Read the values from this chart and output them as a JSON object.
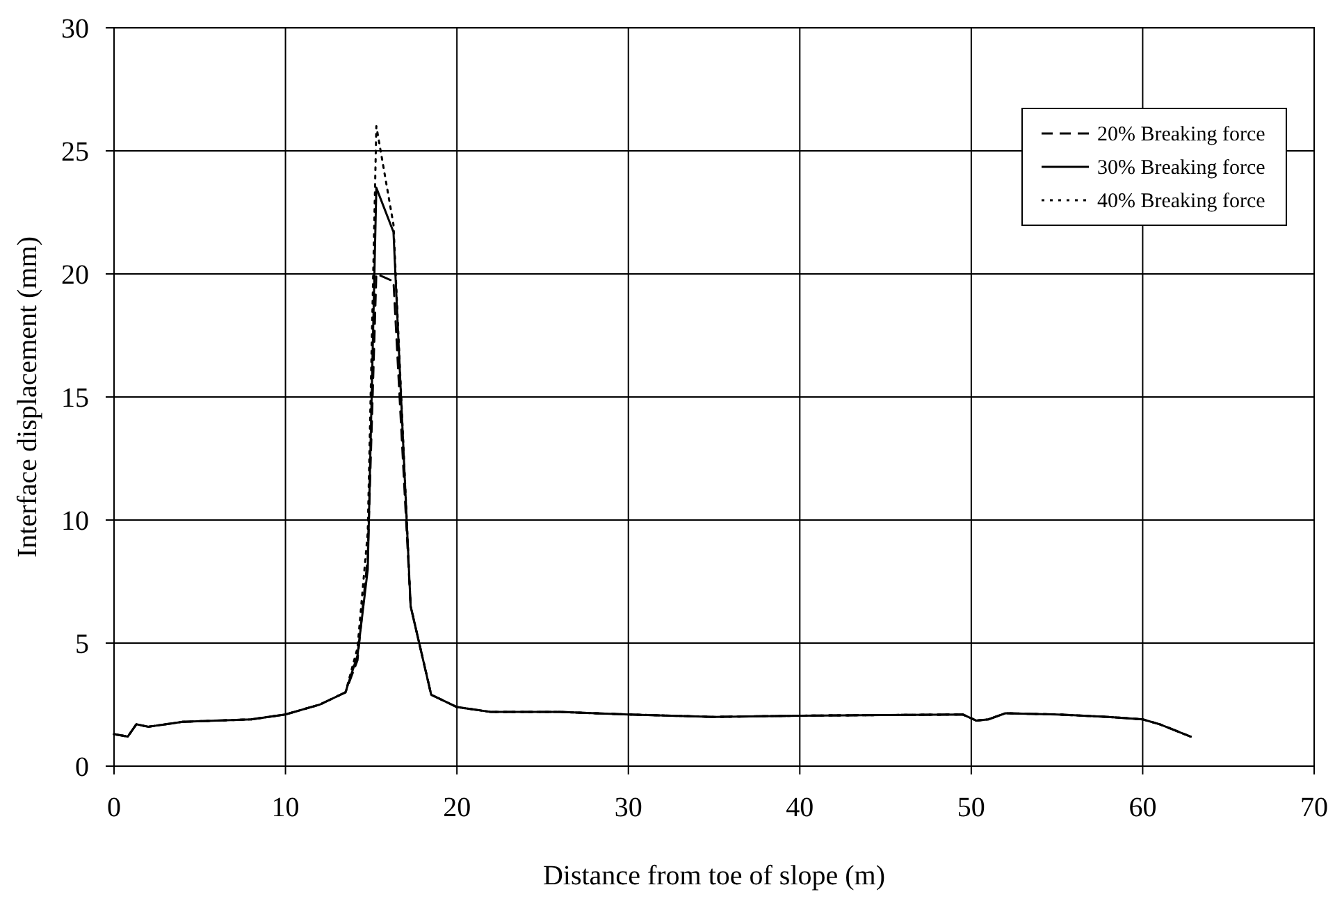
{
  "chart_data": {
    "type": "line",
    "xlabel": "Distance from toe of slope (m)",
    "ylabel": "Interface displacement (mm)",
    "x": [
      0,
      0.8,
      1.3,
      2,
      4,
      8,
      10,
      12,
      13.5,
      14.2,
      14.8,
      15.3,
      16.3,
      17.3,
      18.5,
      20,
      22,
      26,
      30,
      35,
      40,
      49.5,
      50.3,
      51,
      52,
      55,
      58,
      60,
      61,
      62.8
    ],
    "series": [
      {
        "name": "20% Breaking force",
        "color": "#000000",
        "line_style": "dashed",
        "values": [
          1.3,
          1.2,
          1.7,
          1.6,
          1.8,
          1.9,
          2.1,
          2.5,
          3.0,
          4.3,
          8.5,
          20.0,
          19.7,
          6.5,
          2.9,
          2.4,
          2.2,
          2.2,
          2.1,
          2.0,
          2.05,
          2.1,
          1.85,
          1.9,
          2.15,
          2.1,
          2.0,
          1.9,
          1.7,
          1.2
        ]
      },
      {
        "name": "30% Breaking force",
        "color": "#000000",
        "line_style": "solid",
        "values": [
          1.3,
          1.2,
          1.7,
          1.6,
          1.8,
          1.9,
          2.1,
          2.5,
          3.0,
          4.5,
          8.0,
          23.5,
          21.7,
          6.5,
          2.9,
          2.4,
          2.2,
          2.2,
          2.1,
          2.0,
          2.05,
          2.1,
          1.85,
          1.9,
          2.15,
          2.1,
          2.0,
          1.9,
          1.7,
          1.2
        ]
      },
      {
        "name": "40% Breaking force",
        "color": "#000000",
        "line_style": "dotted",
        "values": [
          1.3,
          1.2,
          1.7,
          1.6,
          1.8,
          1.9,
          2.1,
          2.5,
          3.0,
          4.8,
          9.5,
          26.0,
          22.0,
          6.5,
          2.9,
          2.4,
          2.2,
          2.2,
          2.1,
          2.0,
          2.05,
          2.1,
          1.85,
          1.9,
          2.15,
          2.1,
          2.0,
          1.9,
          1.7,
          1.2
        ]
      }
    ],
    "xlim": [
      0,
      70
    ],
    "xticks": [
      0,
      10,
      20,
      30,
      40,
      50,
      60,
      70
    ],
    "ylim": [
      0,
      30
    ],
    "yticks": [
      0,
      5,
      10,
      15,
      20,
      25,
      30
    ],
    "grid": true,
    "legend": "top right",
    "marker": "none"
  }
}
